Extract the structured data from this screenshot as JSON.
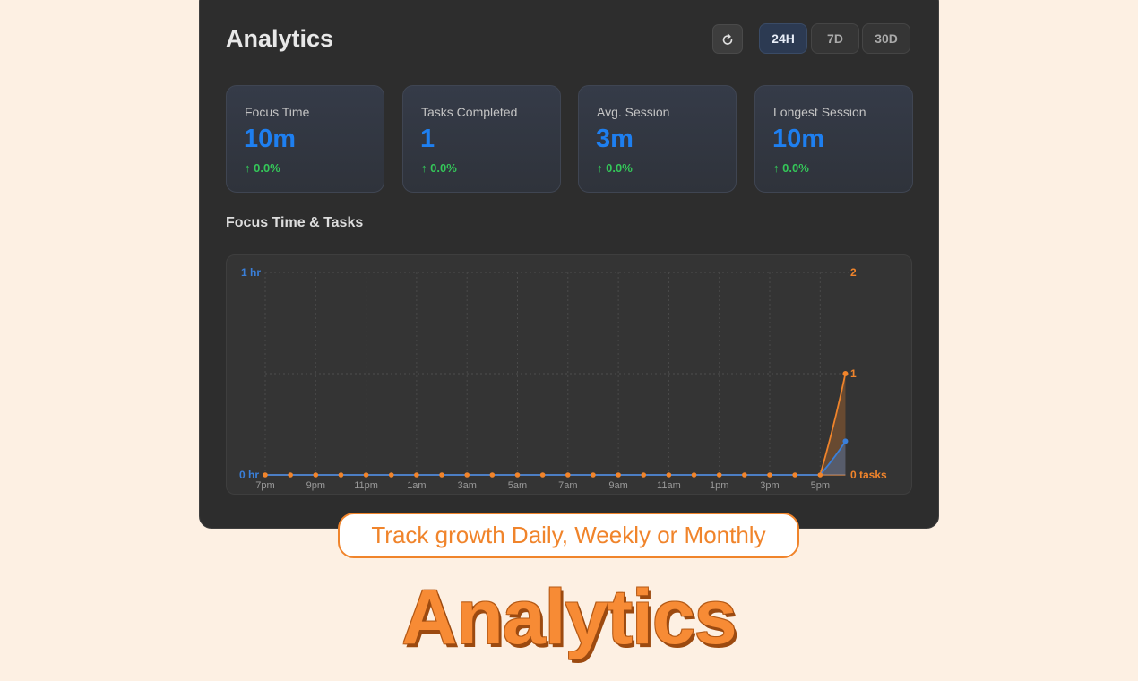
{
  "header": {
    "title": "Analytics",
    "refresh_icon": "refresh-icon",
    "ranges": [
      {
        "label": "24H",
        "active": true
      },
      {
        "label": "7D",
        "active": false
      },
      {
        "label": "30D",
        "active": false
      }
    ]
  },
  "stats": [
    {
      "label": "Focus Time",
      "value": "10m",
      "change": "0.0%"
    },
    {
      "label": "Tasks Completed",
      "value": "1",
      "change": "0.0%"
    },
    {
      "label": "Avg. Session",
      "value": "3m",
      "change": "0.0%"
    },
    {
      "label": "Longest Session",
      "value": "10m",
      "change": "0.0%"
    }
  ],
  "colors": {
    "accent_blue": "#1e7ff0",
    "accent_orange": "#f0842b",
    "positive": "#34c759"
  },
  "chart": {
    "title": "Focus Time & Tasks"
  },
  "chart_data": {
    "type": "line",
    "x_tick_labels": [
      "7pm",
      "9pm",
      "11pm",
      "1am",
      "3am",
      "5am",
      "7am",
      "9am",
      "11am",
      "1pm",
      "3pm",
      "5pm"
    ],
    "y_left_labels": [
      "0 hr",
      "1 hr"
    ],
    "y_right_labels": [
      "0 tasks",
      "1",
      "2"
    ],
    "y_left_range": [
      0,
      60
    ],
    "y_right_range": [
      0,
      2
    ],
    "grid": true,
    "series": [
      {
        "axis": "right",
        "color": "#f0842b",
        "values": [
          0,
          0,
          0,
          0,
          0,
          0,
          0,
          0,
          0,
          0,
          0,
          0,
          0,
          0,
          0,
          0,
          0,
          0,
          0,
          0,
          0,
          0,
          0,
          1
        ]
      },
      {
        "axis": "left",
        "color": "#3a7fd9",
        "values": [
          0,
          0,
          0,
          0,
          0,
          0,
          0,
          0,
          0,
          0,
          0,
          0,
          0,
          0,
          0,
          0,
          0,
          0,
          0,
          0,
          0,
          0,
          0,
          10
        ]
      }
    ]
  },
  "banner": {
    "text": "Track growth Daily, Weekly or Monthly"
  },
  "hero": {
    "text": "Analytics"
  }
}
